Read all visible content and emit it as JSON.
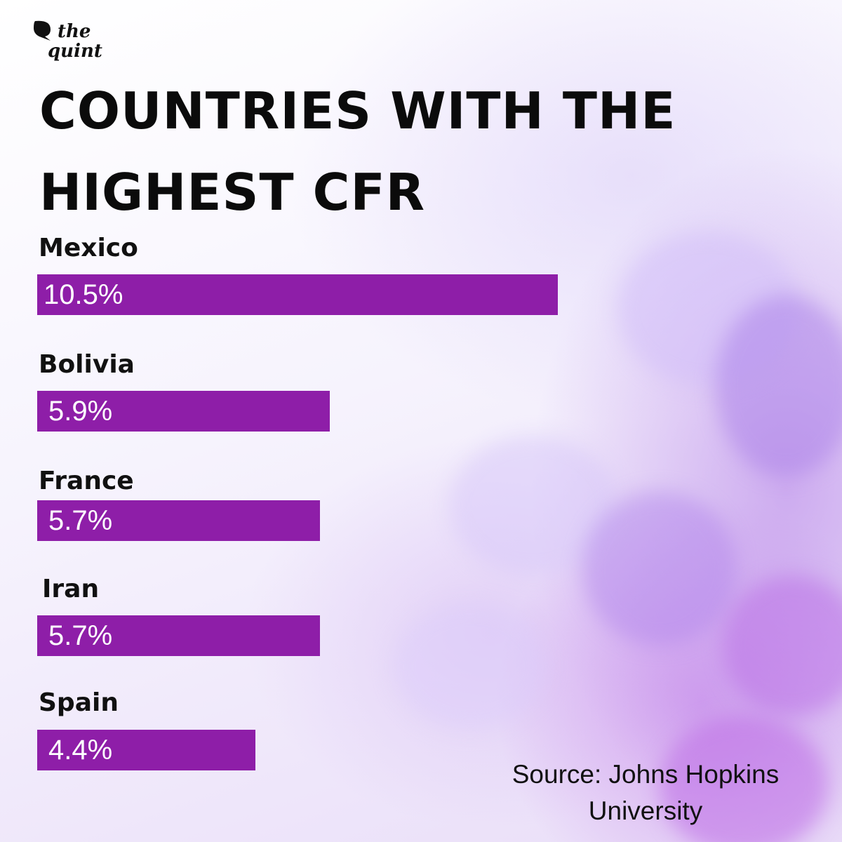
{
  "brand": {
    "line1": "the",
    "line2": "quint"
  },
  "title_line1": "COUNTRIES WITH THE",
  "title_line2": "HIGHEST CFR",
  "source_line1": "Source: Johns Hopkins",
  "source_line2": "University",
  "colors": {
    "bar": "#8e1ea8",
    "text": "#111111",
    "bar_text": "#ffffff"
  },
  "chart_data": {
    "type": "bar",
    "orientation": "horizontal",
    "title": "COUNTRIES WITH THE HIGHEST CFR",
    "categories": [
      "Mexico",
      "Bolivia",
      "France",
      "Iran",
      "Spain"
    ],
    "values": [
      10.5,
      5.9,
      5.7,
      5.7,
      4.4
    ],
    "value_labels": [
      "10.5%",
      "5.9%",
      "5.7%",
      "5.7%",
      "4.4%"
    ],
    "unit": "%",
    "xlim": [
      0,
      10.5
    ],
    "grid": false
  }
}
